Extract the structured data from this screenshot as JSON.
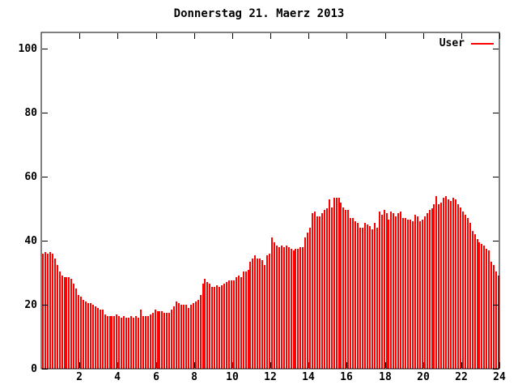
{
  "title": "Donnerstag 21. Maerz 2013",
  "legend": {
    "label": "User",
    "line_color": "#ff0000"
  },
  "colors": {
    "background": "#ffffff",
    "bar": "#ff0000",
    "axis": "#000000",
    "text": "#000000"
  },
  "chart_data": {
    "type": "bar",
    "title": "Donnerstag 21. Maerz 2013",
    "series_name": "User",
    "xlabel": "",
    "ylabel": "",
    "xlim": [
      0,
      24
    ],
    "ylim": [
      0,
      100
    ],
    "x_ticks": [
      2,
      4,
      6,
      8,
      10,
      12,
      14,
      16,
      18,
      20,
      22,
      24
    ],
    "y_ticks": [
      0,
      20,
      40,
      60,
      80,
      100
    ],
    "x_unit": "hour-of-day",
    "interval_hours": 0.125,
    "grid": false,
    "legend_position": "top-right-inside",
    "values": [
      36,
      36.5,
      36,
      36.5,
      36,
      34.5,
      32.5,
      30.5,
      29,
      28.5,
      28.5,
      28.5,
      28,
      26.5,
      25,
      23,
      22.5,
      21.5,
      21,
      20.5,
      20.5,
      20,
      19.5,
      19,
      18.5,
      18.5,
      17,
      16.5,
      16.5,
      16.5,
      16.5,
      17,
      16.5,
      16,
      16.5,
      16,
      16,
      16.5,
      16,
      16.5,
      16,
      18.5,
      16.5,
      16.5,
      16.5,
      17,
      17.5,
      18.5,
      18,
      18,
      18,
      17.5,
      17.5,
      17.5,
      18.5,
      19.5,
      21,
      20.5,
      20,
      20,
      20,
      19,
      20,
      20.5,
      21,
      21.5,
      23,
      26.5,
      28,
      27,
      26.5,
      25.5,
      25.5,
      26,
      25.5,
      26,
      26.5,
      27,
      27.5,
      27.5,
      27.5,
      28.5,
      29,
      28.5,
      30.5,
      30.5,
      31,
      33.5,
      34.5,
      35.5,
      34.5,
      34.5,
      34,
      32.5,
      35.5,
      36,
      41,
      39.5,
      38.5,
      38,
      38.5,
      38,
      38.5,
      38,
      37.5,
      37,
      37.5,
      37.5,
      38,
      38,
      41,
      42.5,
      44,
      48.5,
      49,
      47.5,
      47.5,
      48.5,
      49.5,
      50,
      53,
      50.5,
      53.5,
      53.5,
      53.5,
      52,
      50.5,
      49.5,
      49.5,
      47,
      47,
      46,
      45.5,
      44,
      44,
      45.5,
      45,
      44.5,
      43.5,
      45.5,
      44,
      49,
      48,
      49.5,
      48.5,
      46.5,
      49,
      48.5,
      47.5,
      48.5,
      49,
      47,
      47,
      46.5,
      46.5,
      46,
      48,
      47.5,
      46,
      46.5,
      47.5,
      48.5,
      49.5,
      50,
      51.5,
      54,
      51.5,
      52,
      53.5,
      54,
      53,
      52.5,
      53.5,
      53,
      51.5,
      50.5,
      49,
      48,
      47,
      45.5,
      43,
      42,
      40.5,
      39.5,
      39,
      38.5,
      37.5,
      37,
      33.5,
      32.5,
      30.5,
      29
    ]
  }
}
